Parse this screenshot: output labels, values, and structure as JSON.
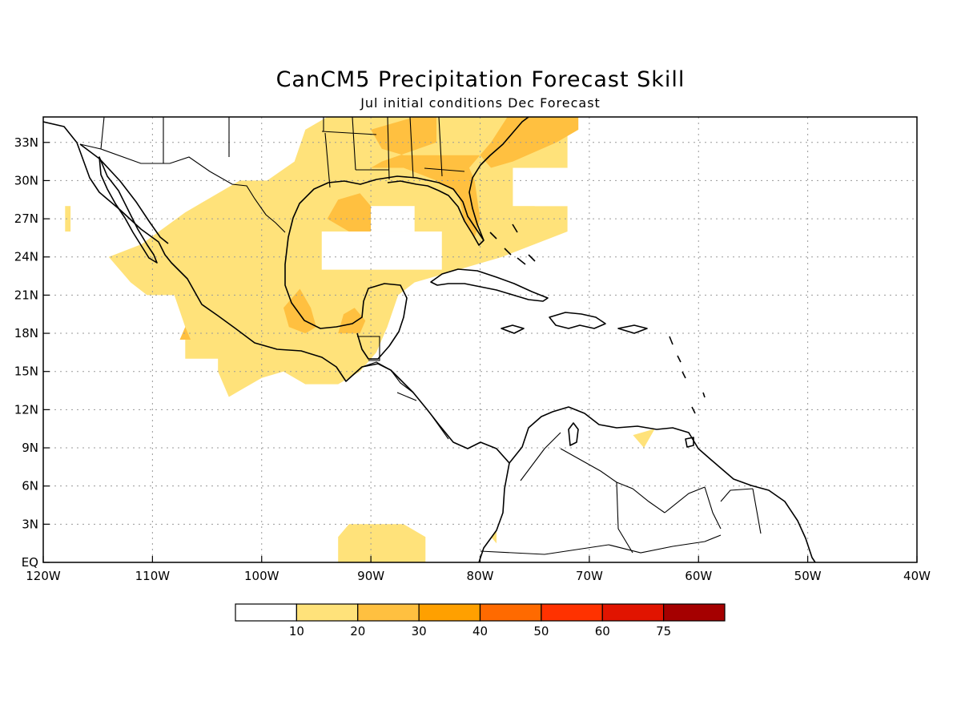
{
  "title": "CanCM5 Precipitation Forecast Skill",
  "subtitle": "Jul initial conditions   Dec Forecast",
  "axes": {
    "lon_labels": [
      "120W",
      "110W",
      "100W",
      "90W",
      "80W",
      "70W",
      "60W",
      "50W",
      "40W"
    ],
    "lat_labels": [
      "EQ",
      "3N",
      "6N",
      "9N",
      "12N",
      "15N",
      "18N",
      "21N",
      "24N",
      "27N",
      "30N",
      "33N"
    ],
    "lon_range": [
      -120,
      -40
    ],
    "lat_range": [
      0,
      35
    ],
    "grid": "dotted"
  },
  "legend": {
    "labels": [
      "10",
      "20",
      "30",
      "40",
      "50",
      "60",
      "75"
    ],
    "colors": [
      "#ffffff",
      "#ffe27a",
      "#ffc040",
      "#ffa000",
      "#ff6a00",
      "#ff3200",
      "#e11400",
      "#a50000"
    ]
  },
  "chart_data": {
    "type": "heatmap",
    "title": "CanCM5 Precipitation Forecast Skill",
    "subtitle": "Jul initial conditions   Dec Forecast",
    "x_range": [
      -120,
      -40
    ],
    "y_range": [
      0,
      35
    ],
    "x_ticks": [
      -120,
      -110,
      -100,
      -90,
      -80,
      -70,
      -60,
      -50,
      -40
    ],
    "y_ticks": [
      0,
      3,
      6,
      9,
      12,
      15,
      18,
      21,
      24,
      27,
      30,
      33
    ],
    "levels": [
      10,
      20,
      30,
      40,
      50,
      60,
      75
    ],
    "regions": [
      {
        "level": "10-20",
        "area": "Mexico and Gulf of Mexico",
        "polygon": [
          [
            -111,
            25
          ],
          [
            -107,
            27.5
          ],
          [
            -102,
            30
          ],
          [
            -99.5,
            30
          ],
          [
            -97,
            31.5
          ],
          [
            -96,
            34
          ],
          [
            -94,
            35
          ],
          [
            -72,
            35
          ],
          [
            -72,
            31
          ],
          [
            -75,
            31
          ],
          [
            -75,
            28
          ],
          [
            -72,
            28
          ],
          [
            -72,
            26
          ],
          [
            -78,
            24
          ],
          [
            -84,
            22.5
          ],
          [
            -86,
            22
          ],
          [
            -87.5,
            21
          ],
          [
            -88.5,
            18.5
          ],
          [
            -89.5,
            16.5
          ],
          [
            -91,
            15
          ],
          [
            -93,
            14
          ],
          [
            -96,
            14
          ],
          [
            -98,
            15
          ],
          [
            -100,
            14.5
          ],
          [
            -102,
            13.5
          ],
          [
            -103,
            13
          ],
          [
            -104,
            15
          ],
          [
            -104,
            16
          ],
          [
            -107,
            16
          ],
          [
            -107,
            18.5
          ],
          [
            -108,
            21
          ],
          [
            -110.5,
            21
          ],
          [
            -112,
            22
          ],
          [
            -114,
            24
          ]
        ]
      },
      {
        "level": "10-20",
        "area": "Baja California spot",
        "polygon": [
          [
            -118,
            26
          ],
          [
            -117.5,
            26
          ],
          [
            -117.5,
            28
          ],
          [
            -118,
            28
          ]
        ]
      },
      {
        "level": "10-20",
        "area": "Caribbean near Venezuela",
        "polygon": [
          [
            -66,
            10
          ],
          [
            -64,
            10.5
          ],
          [
            -65,
            9
          ]
        ]
      },
      {
        "level": "10-20",
        "area": "Pacific near equator",
        "polygon": [
          [
            -93,
            0
          ],
          [
            -85,
            0
          ],
          [
            -85,
            2
          ],
          [
            -87,
            3
          ],
          [
            -92,
            3
          ],
          [
            -93,
            2
          ]
        ]
      },
      {
        "level": "10-20",
        "area": "Colombian coast",
        "polygon": [
          [
            -79,
            2
          ],
          [
            -78.5,
            2.5
          ],
          [
            -78.5,
            1.5
          ]
        ]
      },
      {
        "level": "20-30",
        "area": "Southeast US",
        "polygon": [
          [
            -90,
            31
          ],
          [
            -87,
            31
          ],
          [
            -84,
            30
          ],
          [
            -82,
            29
          ],
          [
            -81.5,
            27
          ],
          [
            -80.5,
            25.5
          ],
          [
            -80,
            27
          ],
          [
            -80.5,
            30
          ],
          [
            -81,
            31
          ],
          [
            -79,
            33
          ],
          [
            -77.5,
            35
          ],
          [
            -71,
            35
          ],
          [
            -71,
            34
          ],
          [
            -73,
            33
          ],
          [
            -77,
            31.5
          ],
          [
            -79,
            31
          ],
          [
            -80,
            32
          ],
          [
            -84,
            32
          ],
          [
            -87,
            32
          ],
          [
            -89,
            32.5
          ],
          [
            -90,
            34
          ],
          [
            -86,
            35
          ],
          [
            -84,
            35
          ],
          [
            -84,
            33
          ],
          [
            -89,
            31.5
          ]
        ]
      },
      {
        "level": "20-30",
        "area": "Bay of Campeche",
        "polygon": [
          [
            -98,
            20
          ],
          [
            -96.5,
            21.5
          ],
          [
            -95.5,
            20
          ],
          [
            -95,
            18.5
          ],
          [
            -96,
            18
          ],
          [
            -97.5,
            18.5
          ]
        ]
      },
      {
        "level": "20-30",
        "area": "Yucatan coast",
        "polygon": [
          [
            -93,
            18
          ],
          [
            -92.5,
            19.5
          ],
          [
            -91.5,
            20
          ],
          [
            -90.5,
            19
          ],
          [
            -91,
            18
          ]
        ]
      },
      {
        "level": "20-30",
        "area": "Western Mexico spot",
        "polygon": [
          [
            -107.5,
            17.5
          ],
          [
            -107,
            18.5
          ],
          [
            -106.5,
            17.5
          ]
        ]
      },
      {
        "level": "20-30",
        "area": "Northern Gulf",
        "polygon": [
          [
            -94,
            27
          ],
          [
            -93,
            28.5
          ],
          [
            -91,
            29
          ],
          [
            -90,
            28
          ],
          [
            -90,
            26
          ],
          [
            -92,
            26
          ]
        ]
      }
    ],
    "masked_gaps": [
      {
        "area": "Central Gulf",
        "lon": [
          -94.5,
          -83.5
        ],
        "lat": [
          23,
          26
        ]
      },
      {
        "area": "Central Gulf (north)",
        "lon": [
          -90,
          -86
        ],
        "lat": [
          26,
          28
        ]
      },
      {
        "area": "Atlantic east of Florida",
        "lon": [
          -77,
          -72
        ],
        "lat": [
          28,
          31
        ]
      }
    ]
  }
}
